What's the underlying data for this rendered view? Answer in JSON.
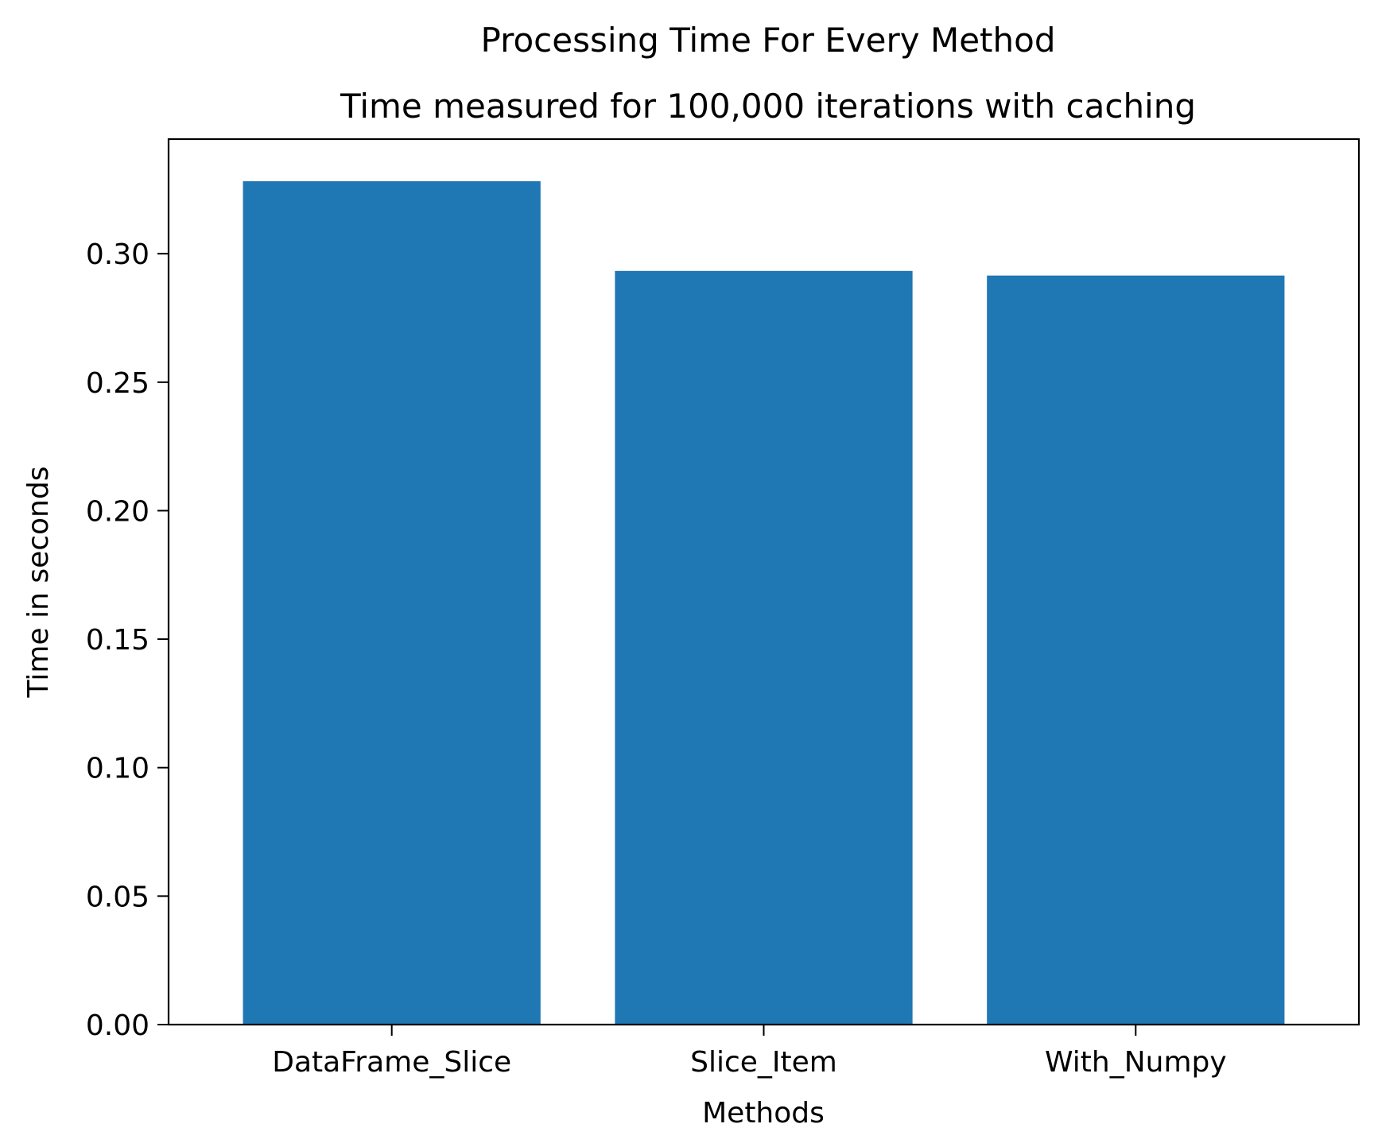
{
  "chart_data": {
    "type": "bar",
    "title": "Processing Time For Every Method",
    "subtitle": "Time measured for 100,000 iterations with caching",
    "xlabel": "Methods",
    "ylabel": "Time in seconds",
    "categories": [
      "DataFrame_Slice",
      "Slice_Item",
      "With_Numpy"
    ],
    "values": [
      0.3282,
      0.2933,
      0.2915
    ],
    "ylim": [
      0,
      0.3446
    ],
    "yticks": [
      0.0,
      0.05,
      0.1,
      0.15,
      0.2,
      0.25,
      0.3
    ],
    "ytick_labels": [
      "0.00",
      "0.05",
      "0.10",
      "0.15",
      "0.20",
      "0.25",
      "0.30"
    ],
    "grid": false,
    "legend": "none",
    "bar_color": "#1f77b4"
  }
}
